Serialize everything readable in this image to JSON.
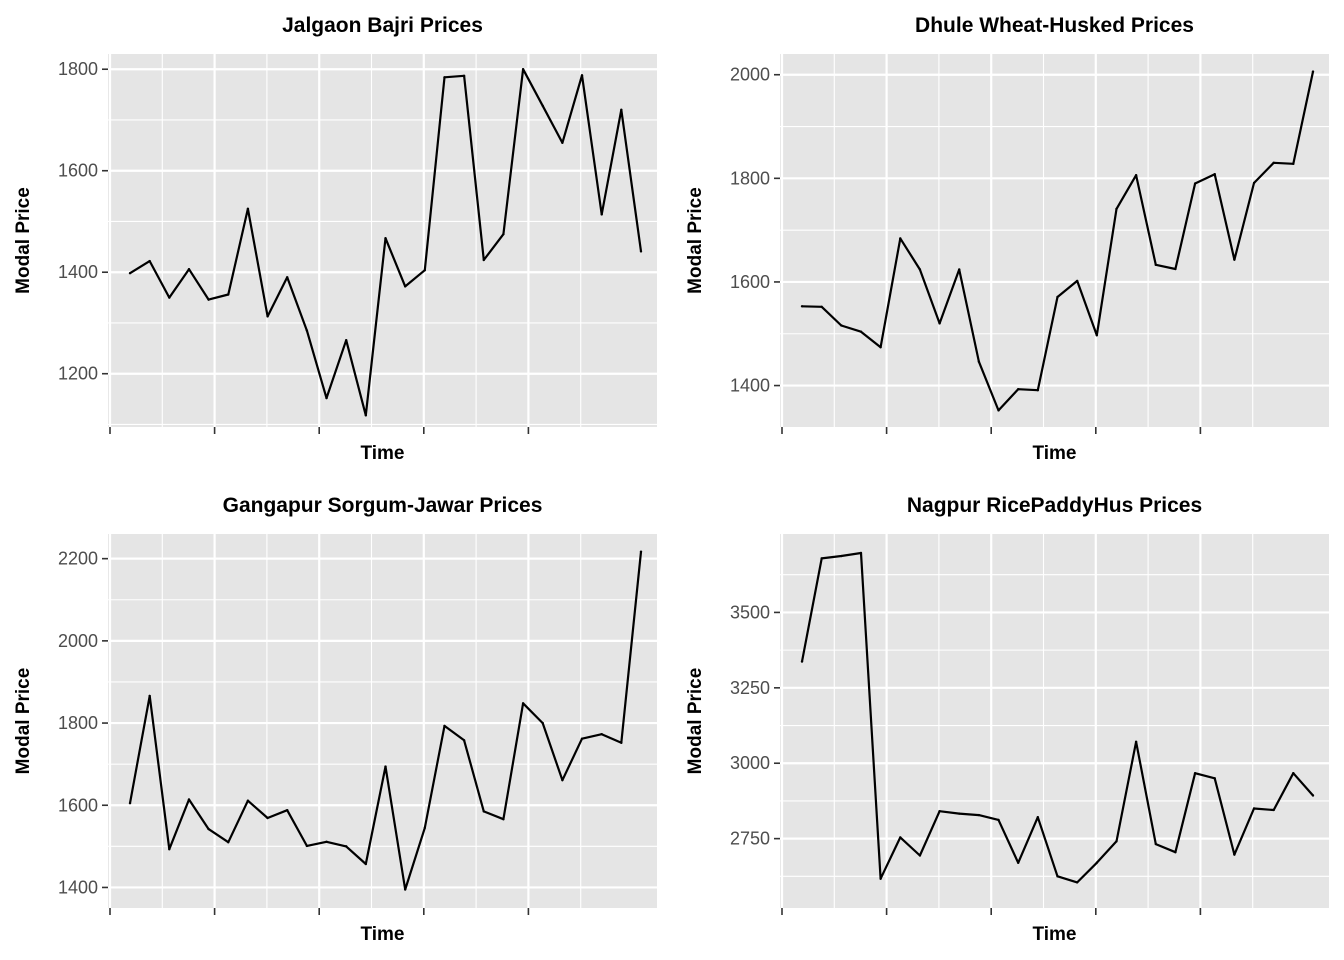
{
  "chart_data": [
    {
      "type": "line",
      "title": "Jalgaon Bajri Prices",
      "xlabel": "Time",
      "ylabel": "Modal Price",
      "ylim": [
        1095,
        1830
      ],
      "yticks": [
        1200,
        1400,
        1600,
        1800
      ],
      "grid": true,
      "series": [
        {
          "values": [
            1398,
            1422,
            1350,
            1406,
            1346,
            1356,
            1525,
            1313,
            1390,
            1285,
            1152,
            1266,
            1118,
            1467,
            1372,
            1404,
            1784,
            1787,
            1424,
            1475,
            1800,
            1728,
            1655,
            1788,
            1514,
            1720,
            1441
          ]
        }
      ]
    },
    {
      "type": "line",
      "title": "Dhule Wheat-Husked Prices",
      "xlabel": "Time",
      "ylabel": "Modal Price",
      "ylim": [
        1320,
        2040
      ],
      "yticks": [
        1400,
        1600,
        1800,
        2000
      ],
      "grid": true,
      "series": [
        {
          "values": [
            1553,
            1552,
            1516,
            1504,
            1474,
            1684,
            1624,
            1520,
            1624,
            1446,
            1352,
            1393,
            1391,
            1571,
            1602,
            1497,
            1741,
            1806,
            1633,
            1625,
            1790,
            1808,
            1643,
            1791,
            1830,
            1828,
            2006
          ]
        }
      ]
    },
    {
      "type": "line",
      "title": "Gangapur Sorgum-Jawar Prices",
      "xlabel": "Time",
      "ylabel": "Modal Price",
      "ylim": [
        1350,
        2260
      ],
      "yticks": [
        1400,
        1600,
        1800,
        2000,
        2200
      ],
      "grid": true,
      "series": [
        {
          "values": [
            1605,
            1866,
            1493,
            1614,
            1542,
            1510,
            1611,
            1569,
            1588,
            1501,
            1511,
            1500,
            1457,
            1694,
            1395,
            1545,
            1793,
            1758,
            1585,
            1566,
            1848,
            1800,
            1661,
            1762,
            1773,
            1752,
            2217
          ]
        }
      ]
    },
    {
      "type": "line",
      "title": "Nagpur RicePaddyHus Prices",
      "xlabel": "Time",
      "ylabel": "Modal Price",
      "ylim": [
        2520,
        3760
      ],
      "yticks": [
        2750,
        3000,
        3250,
        3500
      ],
      "grid": true,
      "series": [
        {
          "values": [
            3337,
            3679,
            3687,
            3697,
            2617,
            2754,
            2694,
            2841,
            2833,
            2828,
            2812,
            2670,
            2821,
            2625,
            2605,
            2670,
            2741,
            3071,
            2732,
            2705,
            2967,
            2950,
            2697,
            2850,
            2845,
            2967,
            2893
          ]
        }
      ]
    }
  ]
}
